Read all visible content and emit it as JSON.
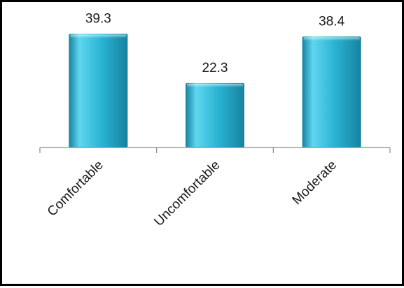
{
  "chart_data": {
    "type": "bar",
    "title": "",
    "xlabel": "",
    "ylabel": "",
    "categories": [
      "Comfortable",
      "Uncomfortable",
      "Moderate"
    ],
    "values": [
      39.3,
      22.3,
      38.4
    ],
    "data_labels": [
      "39.3",
      "22.3",
      "38.4"
    ],
    "ylim": [
      0,
      45
    ],
    "grid": false,
    "legend": "none",
    "colors": {
      "bar_light": "#5fd6ef",
      "bar_mid": "#2ab4d3",
      "bar_dark": "#1682a0",
      "axis": "#8a8a8a",
      "frame": "#000000",
      "text": "#1a1a1a"
    }
  }
}
